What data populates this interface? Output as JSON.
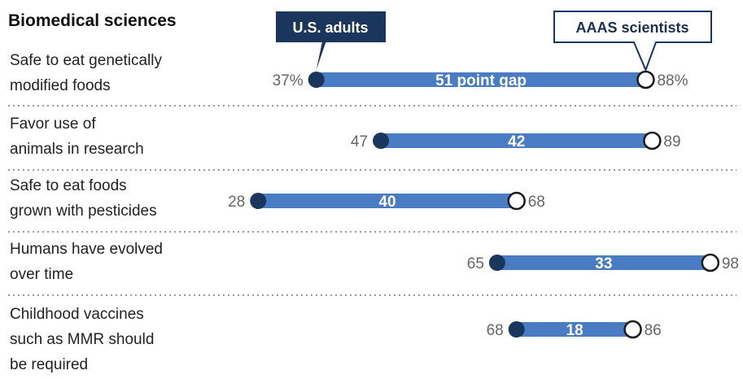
{
  "chart_data": {
    "type": "dumbbell",
    "title": "Biomedical sciences",
    "series": [
      {
        "name": "U.S. adults",
        "color": "#1b365d"
      },
      {
        "name": "AAAS scientists",
        "color": "#ffffff"
      }
    ],
    "colors": {
      "bar": "#4a7cc4",
      "adult_dot": "#1b365d",
      "sci_dot": "#ffffff",
      "divider": "#9a9a9a"
    },
    "rows": [
      {
        "label": [
          "Safe to eat genetically",
          "modified foods"
        ],
        "adults": 37,
        "scientists": 88,
        "gap_label": "51 point gap",
        "adults_label": "37%",
        "scientists_label": "88%"
      },
      {
        "label": [
          "Favor use of",
          "animals in research"
        ],
        "adults": 47,
        "scientists": 89,
        "gap_label": "42",
        "adults_label": "47",
        "scientists_label": "89"
      },
      {
        "label": [
          "Safe to eat foods",
          "grown with pesticides"
        ],
        "adults": 28,
        "scientists": 68,
        "gap_label": "40",
        "adults_label": "28",
        "scientists_label": "68"
      },
      {
        "label": [
          "Humans have evolved",
          "over time"
        ],
        "adults": 65,
        "scientists": 98,
        "gap_label": "33",
        "adults_label": "65",
        "scientists_label": "98"
      },
      {
        "label": [
          "Childhood vaccines",
          "such as MMR should",
          "be required"
        ],
        "adults": 68,
        "scientists": 86,
        "gap_label": "18",
        "adults_label": "68",
        "scientists_label": "86"
      }
    ]
  }
}
